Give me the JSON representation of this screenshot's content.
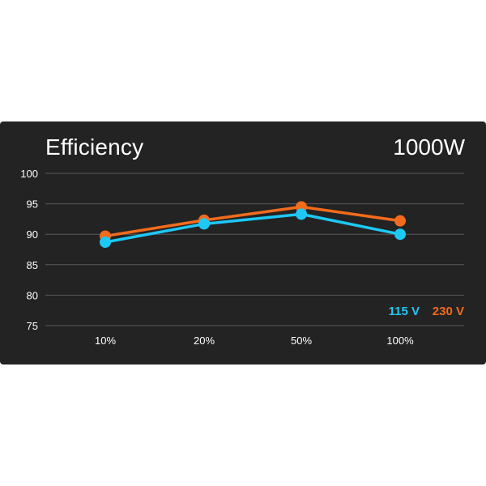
{
  "header": {
    "title": "Efficiency",
    "wattage": "1000W"
  },
  "chart_data": {
    "type": "line",
    "categories": [
      "10%",
      "20%",
      "50%",
      "100%"
    ],
    "series": [
      {
        "name": "115 V",
        "color": "#1ec8f5",
        "values": [
          88.7,
          91.7,
          93.3,
          90.0
        ]
      },
      {
        "name": "230 V",
        "color": "#f36b1c",
        "values": [
          89.7,
          92.3,
          94.5,
          92.2
        ]
      }
    ],
    "yticks": [
      100,
      95,
      90,
      85,
      80,
      75
    ],
    "ylim": [
      75,
      100
    ],
    "grid": true,
    "legend_position": "bottom-right",
    "background": "#232323"
  }
}
